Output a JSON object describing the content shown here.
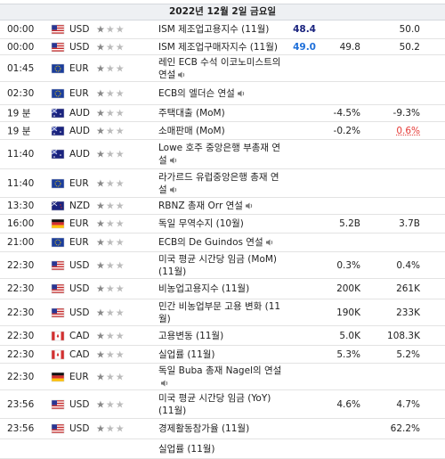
{
  "header": {
    "title": "2022년 12월 2일 금요일"
  },
  "rows": [
    {
      "time": "00:00",
      "flag": "us",
      "currency": "USD",
      "event": "ISM 제조업고용지수 (11월)",
      "actual": "48.4",
      "actual_color": "#1a237e",
      "previous": "50.0"
    },
    {
      "time": "00:00",
      "flag": "us",
      "currency": "USD",
      "event": "ISM 제조업구매자지수 (11월)",
      "actual": "49.0",
      "actual_color": "#1e6fd9",
      "forecast": "49.8",
      "previous": "50.2"
    },
    {
      "time": "01:45",
      "flag": "eu",
      "currency": "EUR",
      "event": "레인 ECB 수석 이코노미스트의 연설",
      "speech": true
    },
    {
      "time": "02:30",
      "flag": "eu",
      "currency": "EUR",
      "event": "ECB의 엘더슨 연설",
      "speech": true
    },
    {
      "time": "19 분",
      "flag": "au",
      "currency": "AUD",
      "event": "주택대출 (MoM)",
      "forecast": "-4.5%",
      "previous": "-9.3%"
    },
    {
      "time": "19 분",
      "flag": "au",
      "currency": "AUD",
      "event": "소매판매 (MoM)",
      "forecast": "-0.2%",
      "previous": "0.6%",
      "previous_color": "#e53935"
    },
    {
      "time": "11:40",
      "flag": "au",
      "currency": "AUD",
      "event": "Lowe 호주 중앙은행 부총재 연설",
      "speech": true
    },
    {
      "time": "11:40",
      "flag": "eu",
      "currency": "EUR",
      "event": "라가르드 유럽중앙은행 총재 연설",
      "speech": true
    },
    {
      "time": "13:30",
      "flag": "nz",
      "currency": "NZD",
      "event": "RBNZ 총재 Orr 연설",
      "speech": true
    },
    {
      "time": "16:00",
      "flag": "de",
      "currency": "EUR",
      "event": "독일 무역수지 (10월)",
      "forecast": "5.2B",
      "previous": "3.7B"
    },
    {
      "time": "21:00",
      "flag": "eu",
      "currency": "EUR",
      "event": "ECB의 De Guindos 연설",
      "speech": true
    },
    {
      "time": "22:30",
      "flag": "us",
      "currency": "USD",
      "event": "미국 평균 시간당 임금 (MoM) (11월)",
      "forecast": "0.3%",
      "previous": "0.4%"
    },
    {
      "time": "22:30",
      "flag": "us",
      "currency": "USD",
      "event": "비농업고용지수 (11월)",
      "forecast": "200K",
      "previous": "261K"
    },
    {
      "time": "22:30",
      "flag": "us",
      "currency": "USD",
      "event": "민간 비농업부문 고용 변화 (11월)",
      "forecast": "190K",
      "previous": "233K"
    },
    {
      "time": "22:30",
      "flag": "ca",
      "currency": "CAD",
      "event": "고용변동 (11월)",
      "forecast": "5.0K",
      "previous": "108.3K"
    },
    {
      "time": "22:30",
      "flag": "ca",
      "currency": "CAD",
      "event": "실업률 (11월)",
      "forecast": "5.3%",
      "previous": "5.2%"
    },
    {
      "time": "22:30",
      "flag": "de",
      "currency": "EUR",
      "event": "독일 Buba 총재 Nagel의 연설",
      "speech": true
    },
    {
      "time": "23:56",
      "flag": "us",
      "currency": "USD",
      "event": "미국 평균 시간당 임금 (YoY) (11월)",
      "forecast": "4.6%",
      "previous": "4.7%"
    },
    {
      "time": "23:56",
      "flag": "us",
      "currency": "USD",
      "event": "경제활동참가율 (11월)",
      "previous": "62.2%"
    },
    {
      "event": "실업률 (11월)"
    }
  ]
}
